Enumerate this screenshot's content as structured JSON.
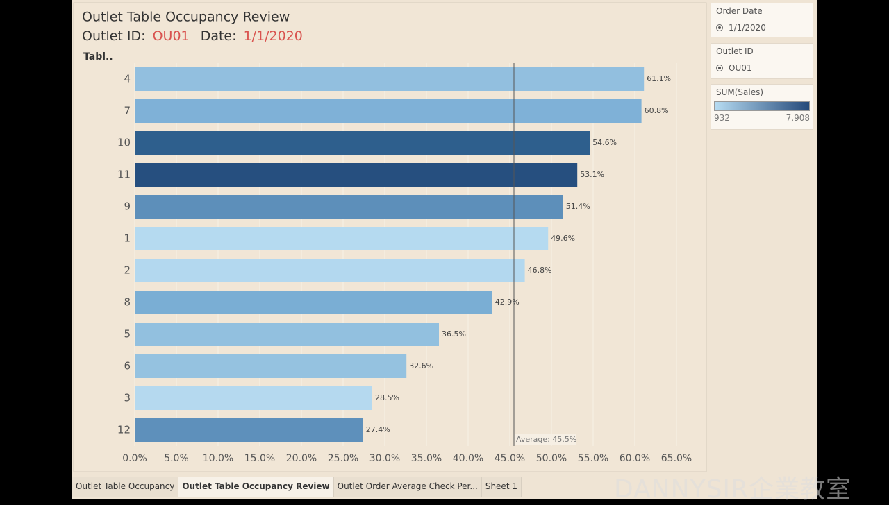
{
  "chart_data": {
    "type": "bar",
    "orientation": "horizontal",
    "title": "Outlet Table Occupancy Review",
    "subtitle": {
      "outlet_label": "Outlet ID:",
      "outlet_value": "OU01",
      "date_label": "Date:",
      "date_value": "1/1/2020"
    },
    "y_label": "Tabl..",
    "categories": [
      "4",
      "7",
      "10",
      "11",
      "9",
      "1",
      "2",
      "8",
      "5",
      "6",
      "3",
      "12"
    ],
    "values": [
      61.1,
      60.8,
      54.6,
      53.1,
      51.4,
      49.6,
      46.8,
      42.9,
      36.5,
      32.6,
      28.5,
      27.4
    ],
    "value_labels": [
      "61.1%",
      "60.8%",
      "54.6%",
      "53.1%",
      "51.4%",
      "49.6%",
      "46.8%",
      "42.9%",
      "36.5%",
      "32.6%",
      "28.5%",
      "27.4%"
    ],
    "colors": [
      "#92bfdf",
      "#7fb1d7",
      "#2e5f8d",
      "#264f7f",
      "#5d8fba",
      "#b5daf0",
      "#b3d8ef",
      "#7aaed4",
      "#92c0df",
      "#95c2e0",
      "#b5d9ef",
      "#5e90bb"
    ],
    "xlim": [
      0,
      67.5
    ],
    "xticks": [
      {
        "value": 0,
        "label": "0.0%"
      },
      {
        "value": 5,
        "label": "5.0%"
      },
      {
        "value": 10,
        "label": "10.0%"
      },
      {
        "value": 15,
        "label": "15.0%"
      },
      {
        "value": 20,
        "label": "20.0%"
      },
      {
        "value": 25,
        "label": "25.0%"
      },
      {
        "value": 30,
        "label": "30.0%"
      },
      {
        "value": 35,
        "label": "35.0%"
      },
      {
        "value": 40,
        "label": "40.0%"
      },
      {
        "value": 45,
        "label": "45.0%"
      },
      {
        "value": 50,
        "label": "50.0%"
      },
      {
        "value": 55,
        "label": "55.0%"
      },
      {
        "value": 60,
        "label": "60.0%"
      },
      {
        "value": 65,
        "label": "65.0%"
      }
    ],
    "grid": true,
    "average": {
      "value": 45.5,
      "label": "Average: 45.5%"
    }
  },
  "filters": [
    {
      "title": "Order Date",
      "option": "1/1/2020"
    },
    {
      "title": "Outlet ID",
      "option": "OU01"
    }
  ],
  "legend": {
    "title": "SUM(Sales)",
    "min": "932",
    "max": "7,908"
  },
  "tabs": [
    "Outlet Table Occupancy",
    "Outlet Table Occupancy Review",
    "Outlet Order Average Check Per...",
    "Sheet 1"
  ],
  "watermark": "DANNYSIR企業教室"
}
